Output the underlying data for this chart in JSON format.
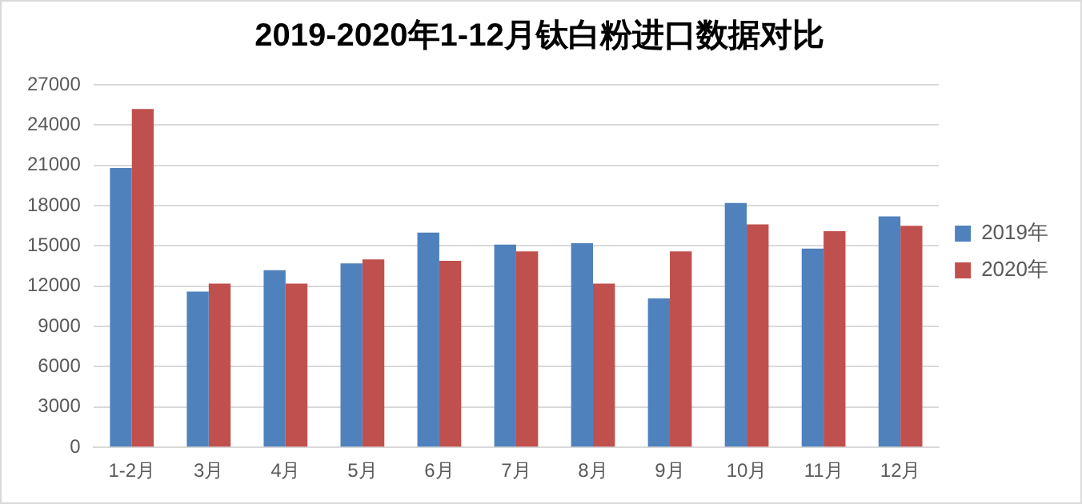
{
  "chart_data": {
    "type": "bar",
    "title": "2019-2020年1-12月钛白粉进口数据对比",
    "categories": [
      "1-2月",
      "3月",
      "4月",
      "5月",
      "6月",
      "7月",
      "8月",
      "9月",
      "10月",
      "11月",
      "12月"
    ],
    "series": [
      {
        "name": "2019年",
        "color": "#4f81bd",
        "values": [
          20800,
          11600,
          13200,
          13700,
          16000,
          15100,
          15200,
          11100,
          18200,
          14800,
          17200
        ]
      },
      {
        "name": "2020年",
        "color": "#c0504d",
        "values": [
          25200,
          12200,
          12200,
          14000,
          13900,
          14600,
          12200,
          14600,
          16600,
          16100,
          16500
        ]
      }
    ],
    "ylim": [
      0,
      27000
    ],
    "yticks": [
      0,
      3000,
      6000,
      9000,
      12000,
      15000,
      18000,
      21000,
      24000,
      27000
    ],
    "grid": "y",
    "legend": "right"
  }
}
